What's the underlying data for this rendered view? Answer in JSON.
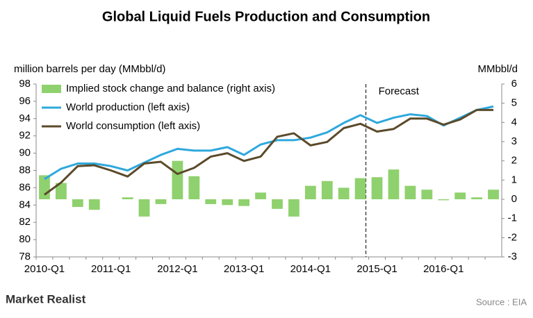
{
  "chart_data": {
    "type": "bar-line",
    "title": "Global Liquid Fuels Production and Consumption",
    "y_label": "million barrels per day (MMbbl/d)",
    "y2_label": "MMbbl/d",
    "annotation": "Forecast",
    "categories": [
      "2010-Q1",
      null,
      null,
      null,
      "2011-Q1",
      null,
      null,
      null,
      "2012-Q1",
      null,
      null,
      null,
      "2013-Q1",
      null,
      null,
      null,
      "2014-Q1",
      null,
      null,
      null,
      "2015-Q1",
      null,
      null,
      null,
      "2016-Q1",
      null,
      null,
      null
    ],
    "ylim": [
      78,
      98
    ],
    "yticks": [
      78,
      80,
      82,
      84,
      86,
      88,
      90,
      92,
      94,
      96,
      98
    ],
    "y2lim": [
      -3,
      6
    ],
    "y2ticks": [
      -3,
      -2,
      -1,
      0,
      1,
      2,
      3,
      4,
      5,
      6
    ],
    "series": [
      {
        "name": "Implied stock change and balance (right axis)",
        "type": "bar",
        "axis": "y2",
        "color": "#8fd16e",
        "values": [
          1.25,
          0.85,
          -0.4,
          -0.55,
          0,
          0.1,
          -0.9,
          -0.25,
          2.0,
          1.2,
          -0.25,
          -0.3,
          -0.35,
          0.35,
          -0.5,
          -0.9,
          0.7,
          0.95,
          0.6,
          1.1,
          1.15,
          1.55,
          0.7,
          0.5,
          -0.05,
          0.35,
          0.1,
          0.5
        ]
      },
      {
        "name": "World production (left axis)",
        "type": "line",
        "axis": "y",
        "color": "#2ea8dc",
        "values": [
          87.0,
          88.2,
          88.8,
          88.8,
          88.5,
          88.0,
          88.9,
          89.8,
          90.5,
          90.3,
          90.3,
          90.7,
          89.8,
          91.0,
          91.5,
          91.5,
          91.8,
          92.4,
          93.5,
          94.4,
          93.5,
          94.1,
          94.5,
          94.3,
          93.2,
          94.1,
          95.0,
          95.4
        ]
      },
      {
        "name": "World consumption (left axis)",
        "type": "line",
        "axis": "y",
        "color": "#5b4a2a",
        "values": [
          85.2,
          86.6,
          88.5,
          88.6,
          88.0,
          87.3,
          88.8,
          89.0,
          87.6,
          88.3,
          89.6,
          90.0,
          89.1,
          89.6,
          91.9,
          92.3,
          90.9,
          91.3,
          92.9,
          93.4,
          92.5,
          92.8,
          94.0,
          94.0,
          93.3,
          93.9,
          95.0,
          95.0
        ]
      }
    ],
    "forecast_start": "2015-Q1",
    "brand": "Market Realist",
    "source": "Source : EIA"
  }
}
